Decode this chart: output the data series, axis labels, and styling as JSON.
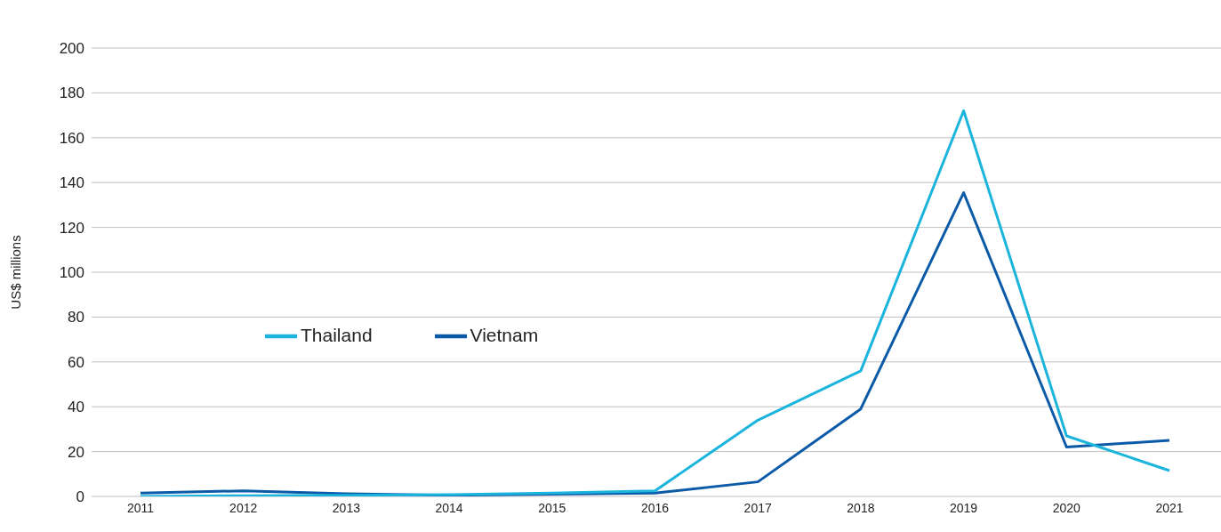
{
  "chart_data": {
    "type": "line",
    "ylabel": "US$ millions",
    "categories": [
      "2011",
      "2012",
      "2013",
      "2014",
      "2015",
      "2016",
      "2017",
      "2018",
      "2019",
      "2020",
      "2021"
    ],
    "series": [
      {
        "name": "Vietnam",
        "color": "#0b5aa8",
        "values": [
          1.5,
          2.5,
          1.2,
          0.5,
          1,
          1.5,
          6.5,
          39,
          135.5,
          22,
          25
        ]
      },
      {
        "name": "Thailand",
        "color": "#1ab4dc",
        "values": [
          0,
          0.3,
          0.5,
          0.8,
          1.5,
          2.5,
          34,
          56,
          172,
          27,
          11.5
        ]
      }
    ],
    "ylim": [
      0,
      200
    ],
    "yticks": [
      0,
      20,
      40,
      60,
      80,
      100,
      120,
      140,
      160,
      180,
      200
    ],
    "grid": "y",
    "legend": "left",
    "marker": "none",
    "line_style": "solid"
  }
}
